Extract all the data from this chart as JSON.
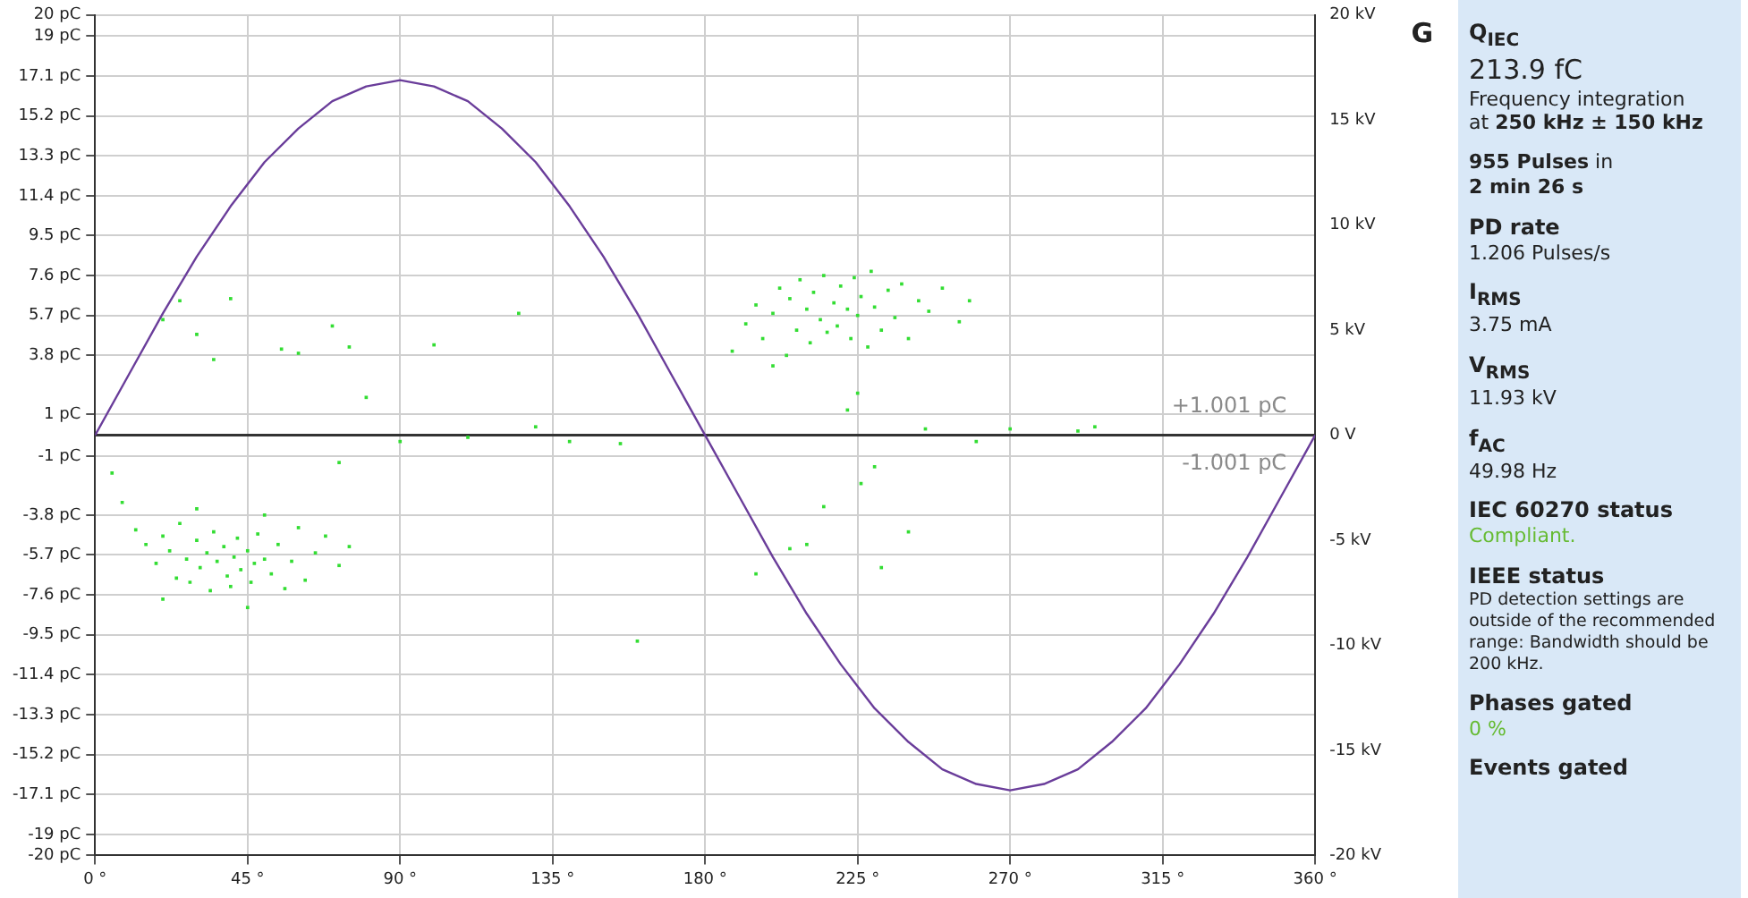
{
  "chart_data": {
    "type": "scatter",
    "legend": false,
    "grid": true,
    "xlim": [
      0,
      360
    ],
    "xticks": [
      {
        "value": 0,
        "label": "0 °"
      },
      {
        "value": 45,
        "label": "45 °"
      },
      {
        "value": 90,
        "label": "90 °"
      },
      {
        "value": 135,
        "label": "135 °"
      },
      {
        "value": 180,
        "label": "180 °"
      },
      {
        "value": 225,
        "label": "225 °"
      },
      {
        "value": 270,
        "label": "270 °"
      },
      {
        "value": 315,
        "label": "315 °"
      },
      {
        "value": 360,
        "label": "360 °"
      }
    ],
    "ylim": [
      -20,
      20
    ],
    "yticks": [
      {
        "value": 20,
        "label": "20 pC"
      },
      {
        "value": 19,
        "label": "19 pC"
      },
      {
        "value": 17.1,
        "label": "17.1 pC"
      },
      {
        "value": 15.2,
        "label": "15.2 pC"
      },
      {
        "value": 13.3,
        "label": "13.3 pC"
      },
      {
        "value": 11.4,
        "label": "11.4 pC"
      },
      {
        "value": 9.5,
        "label": "9.5 pC"
      },
      {
        "value": 7.6,
        "label": "7.6 pC"
      },
      {
        "value": 5.7,
        "label": "5.7 pC"
      },
      {
        "value": 3.8,
        "label": "3.8 pC"
      },
      {
        "value": 1,
        "label": "1 pC"
      },
      {
        "value": -1,
        "label": "-1 pC"
      },
      {
        "value": -3.8,
        "label": "-3.8 pC"
      },
      {
        "value": -5.7,
        "label": "-5.7 pC"
      },
      {
        "value": -7.6,
        "label": "-7.6 pC"
      },
      {
        "value": -9.5,
        "label": "-9.5 pC"
      },
      {
        "value": -11.4,
        "label": "-11.4 pC"
      },
      {
        "value": -13.3,
        "label": "-13.3 pC"
      },
      {
        "value": -15.2,
        "label": "-15.2 pC"
      },
      {
        "value": -17.1,
        "label": "-17.1 pC"
      },
      {
        "value": -19,
        "label": "-19 pC"
      },
      {
        "value": -20,
        "label": "-20 pC"
      }
    ],
    "y2lim": [
      -20,
      20
    ],
    "y2ticks": [
      {
        "value": 20,
        "label": "20 kV"
      },
      {
        "value": 15,
        "label": "15 kV"
      },
      {
        "value": 10,
        "label": "10 kV"
      },
      {
        "value": 5,
        "label": "5 kV"
      },
      {
        "value": 0,
        "label": "0 V"
      },
      {
        "value": -5,
        "label": "-5 kV"
      },
      {
        "value": -10,
        "label": "-10 kV"
      },
      {
        "value": -15,
        "label": "-15 kV"
      },
      {
        "value": -20,
        "label": "-20 kV"
      }
    ],
    "ref_lines": [
      {
        "axis": "y",
        "value": 0,
        "color": "#333333"
      }
    ],
    "series": [
      {
        "marker": "square",
        "color": "#33dd33",
        "x": [
          12,
          15,
          18,
          20,
          22,
          24,
          25,
          27,
          28,
          30,
          31,
          33,
          34,
          35,
          36,
          38,
          39,
          40,
          41,
          42,
          43,
          45,
          46,
          47,
          48,
          50,
          52,
          54,
          56,
          58,
          60,
          62,
          65,
          68,
          72,
          75,
          30,
          50,
          8,
          5,
          20,
          45,
          20,
          25,
          30,
          35,
          40,
          55,
          60,
          70,
          75,
          80,
          100,
          125,
          72,
          90,
          110,
          130,
          140,
          160,
          155,
          188,
          192,
          195,
          197,
          200,
          202,
          204,
          205,
          207,
          208,
          210,
          211,
          212,
          214,
          215,
          216,
          218,
          219,
          220,
          222,
          223,
          224,
          225,
          226,
          228,
          229,
          230,
          232,
          234,
          236,
          238,
          240,
          243,
          246,
          250,
          255,
          258,
          200,
          225,
          222,
          230,
          226,
          215,
          210,
          205,
          232,
          240,
          195,
          245,
          260,
          270,
          290,
          295
        ],
        "values": [
          -4.5,
          -5.2,
          -6.1,
          -4.8,
          -5.5,
          -6.8,
          -4.2,
          -5.9,
          -7.0,
          -5.0,
          -6.3,
          -5.6,
          -7.4,
          -4.6,
          -6.0,
          -5.3,
          -6.7,
          -7.2,
          -5.8,
          -4.9,
          -6.4,
          -5.5,
          -7.0,
          -6.1,
          -4.7,
          -5.9,
          -6.6,
          -5.2,
          -7.3,
          -6.0,
          -4.4,
          -6.9,
          -5.6,
          -4.8,
          -6.2,
          -5.3,
          -3.5,
          -3.8,
          -3.2,
          -1.8,
          -7.8,
          -8.2,
          5.5,
          6.4,
          4.8,
          3.6,
          6.5,
          4.1,
          3.9,
          5.2,
          4.2,
          1.8,
          4.3,
          5.8,
          -1.3,
          -0.3,
          -0.1,
          0.4,
          -0.3,
          -9.8,
          -0.4,
          4.0,
          5.3,
          6.2,
          4.6,
          5.8,
          7.0,
          3.8,
          6.5,
          5.0,
          7.4,
          6.0,
          4.4,
          6.8,
          5.5,
          7.6,
          4.9,
          6.3,
          5.2,
          7.1,
          6.0,
          4.6,
          7.5,
          5.7,
          6.6,
          4.2,
          7.8,
          6.1,
          5.0,
          6.9,
          5.6,
          7.2,
          4.6,
          6.4,
          5.9,
          7.0,
          5.4,
          6.4,
          3.3,
          2.0,
          1.2,
          -1.5,
          -2.3,
          -3.4,
          -5.2,
          -5.4,
          -6.3,
          -4.6,
          -6.6,
          0.3,
          -0.3,
          0.3,
          0.2,
          0.4
        ]
      },
      {
        "type": "line",
        "axis": "y2",
        "marker": "none",
        "line_style": "solid",
        "color": "#6a3d9a",
        "x": [
          0,
          10,
          20,
          30,
          40,
          50,
          60,
          70,
          80,
          90,
          100,
          110,
          120,
          130,
          140,
          150,
          160,
          170,
          180,
          190,
          200,
          210,
          220,
          230,
          240,
          250,
          260,
          270,
          280,
          290,
          300,
          310,
          320,
          330,
          340,
          350,
          360
        ],
        "values": [
          0,
          2.9,
          5.8,
          8.5,
          10.9,
          13,
          14.6,
          15.9,
          16.6,
          16.9,
          16.6,
          15.9,
          14.6,
          13,
          10.9,
          8.5,
          5.8,
          2.9,
          0,
          -2.9,
          -5.8,
          -8.5,
          -10.9,
          -13,
          -14.6,
          -15.9,
          -16.6,
          -16.9,
          -16.6,
          -15.9,
          -14.6,
          -13,
          -10.9,
          -8.5,
          -5.8,
          -2.9,
          0
        ]
      }
    ],
    "annotations": [
      "G",
      "Q$_{IEC}$",
      "213.9 fC",
      "Frequency integration",
      "at",
      "250 kHz ± 150 kHz",
      "955 Pulses",
      "in",
      "2 min 26 s",
      "PD rate",
      "1.206 Pulses/s",
      "I$_{RMS}$",
      "3.75 mA",
      "V$_{RMS}$",
      "11.93 kV",
      "f$_{AC}$",
      "49.98 Hz",
      "IEC 60270 status",
      "Compliant.",
      "IEEE status",
      "PD detection settings are outside of the recommended range: Bandwidth should be 200 kHz.",
      "Phases gated",
      "0 %",
      "Events gated",
      "+1.001 pC",
      "-1.001 pC"
    ]
  }
}
